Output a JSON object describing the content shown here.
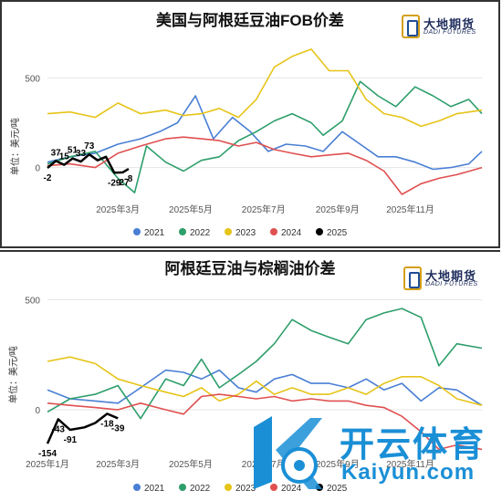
{
  "chart_data": [
    {
      "type": "line",
      "title": "美国与阿根廷豆油FOB价差",
      "ylabel": "单位：美元/吨",
      "ylim": [
        -160,
        680
      ],
      "yticks": [
        0,
        500
      ],
      "x_range": [
        "2025-01-01",
        "2025-12-31"
      ],
      "xticks": [
        "2025年3月",
        "2025年5月",
        "2025年7月",
        "2025年9月",
        "2025年11月"
      ],
      "legend": "bottom-center",
      "series": [
        {
          "name": "2021",
          "color": "#4a7fd4",
          "x": [
            "2025-01-01",
            "2025-01-20",
            "2025-02-10",
            "2025-03-01",
            "2025-03-20",
            "2025-04-05",
            "2025-04-20",
            "2025-05-05",
            "2025-05-20",
            "2025-06-05",
            "2025-06-20",
            "2025-07-05",
            "2025-07-20",
            "2025-08-05",
            "2025-08-20",
            "2025-09-05",
            "2025-09-20",
            "2025-10-05",
            "2025-10-20",
            "2025-11-05",
            "2025-11-20",
            "2025-12-05",
            "2025-12-20",
            "2025-12-31"
          ],
          "y": [
            30,
            60,
            80,
            130,
            160,
            200,
            250,
            400,
            160,
            280,
            200,
            90,
            130,
            120,
            90,
            200,
            130,
            60,
            60,
            30,
            -10,
            0,
            20,
            90
          ]
        },
        {
          "name": "2022",
          "color": "#2e9e6b",
          "x": [
            "2025-01-01",
            "2025-01-20",
            "2025-02-10",
            "2025-03-01",
            "2025-03-15",
            "2025-03-25",
            "2025-04-10",
            "2025-04-25",
            "2025-05-10",
            "2025-05-25",
            "2025-06-10",
            "2025-06-25",
            "2025-07-10",
            "2025-07-25",
            "2025-08-10",
            "2025-08-20",
            "2025-09-05",
            "2025-09-20",
            "2025-10-05",
            "2025-10-20",
            "2025-11-05",
            "2025-11-20",
            "2025-12-05",
            "2025-12-20",
            "2025-12-31"
          ],
          "y": [
            20,
            60,
            90,
            -60,
            -140,
            120,
            30,
            -20,
            40,
            60,
            150,
            200,
            260,
            300,
            250,
            180,
            260,
            480,
            400,
            340,
            450,
            400,
            340,
            380,
            300
          ]
        },
        {
          "name": "2023",
          "color": "#e6c419",
          "x": [
            "2025-01-01",
            "2025-01-20",
            "2025-02-10",
            "2025-03-01",
            "2025-03-20",
            "2025-04-10",
            "2025-04-25",
            "2025-05-10",
            "2025-05-25",
            "2025-06-10",
            "2025-06-25",
            "2025-07-10",
            "2025-07-25",
            "2025-08-10",
            "2025-08-25",
            "2025-09-10",
            "2025-09-25",
            "2025-10-10",
            "2025-10-25",
            "2025-11-10",
            "2025-11-25",
            "2025-12-10",
            "2025-12-31"
          ],
          "y": [
            300,
            310,
            280,
            360,
            300,
            320,
            290,
            300,
            330,
            280,
            380,
            560,
            620,
            660,
            540,
            540,
            380,
            300,
            280,
            230,
            260,
            300,
            320
          ]
        },
        {
          "name": "2024",
          "color": "#e05050",
          "x": [
            "2025-01-01",
            "2025-01-20",
            "2025-02-10",
            "2025-03-01",
            "2025-03-20",
            "2025-04-10",
            "2025-04-25",
            "2025-05-10",
            "2025-05-25",
            "2025-06-10",
            "2025-06-25",
            "2025-07-10",
            "2025-07-25",
            "2025-08-10",
            "2025-08-25",
            "2025-09-10",
            "2025-09-25",
            "2025-10-10",
            "2025-10-25",
            "2025-11-10",
            "2025-11-25",
            "2025-12-10",
            "2025-12-31"
          ],
          "y": [
            10,
            20,
            0,
            80,
            120,
            160,
            170,
            160,
            150,
            120,
            140,
            100,
            80,
            60,
            70,
            80,
            40,
            -20,
            -150,
            -90,
            -60,
            -40,
            0
          ]
        },
        {
          "name": "2025",
          "color": "#000000",
          "x": [
            "2025-01-01",
            "2025-01-08",
            "2025-01-15",
            "2025-01-22",
            "2025-01-29",
            "2025-02-05",
            "2025-02-12",
            "2025-02-19",
            "2025-02-26",
            "2025-03-05",
            "2025-03-10"
          ],
          "y": [
            -2,
            37,
            15,
            51,
            33,
            73,
            40,
            60,
            -29,
            -27,
            -8
          ]
        }
      ],
      "annotations": [
        {
          "text": "-2",
          "x": "2025-01-01",
          "y": -2
        },
        {
          "text": "37",
          "x": "2025-01-08",
          "y": 37
        },
        {
          "text": "15",
          "x": "2025-01-15",
          "y": 15
        },
        {
          "text": "51",
          "x": "2025-01-22",
          "y": 51
        },
        {
          "text": "33",
          "x": "2025-01-29",
          "y": 33
        },
        {
          "text": "73",
          "x": "2025-02-05",
          "y": 73
        },
        {
          "text": "-29",
          "x": "2025-02-26",
          "y": -29
        },
        {
          "text": "-27",
          "x": "2025-03-05",
          "y": -27
        },
        {
          "text": "-8",
          "x": "2025-03-10",
          "y": -8
        }
      ]
    },
    {
      "type": "line",
      "title": "阿根廷豆油与棕榈油价差",
      "ylabel": "单位：美元/吨",
      "ylim": [
        -170,
        560
      ],
      "yticks": [
        0,
        500
      ],
      "x_range": [
        "2025-01-01",
        "2025-12-31"
      ],
      "xticks": [
        "2025年1月",
        "2025年3月",
        "2025年5月",
        "2025年7月",
        "2025年9月",
        "2025年11月"
      ],
      "legend": "bottom-center",
      "series": [
        {
          "name": "2021",
          "color": "#4a7fd4",
          "x": [
            "2025-01-01",
            "2025-01-20",
            "2025-02-10",
            "2025-03-01",
            "2025-03-20",
            "2025-04-10",
            "2025-04-25",
            "2025-05-10",
            "2025-05-25",
            "2025-06-10",
            "2025-06-25",
            "2025-07-10",
            "2025-07-25",
            "2025-08-10",
            "2025-08-25",
            "2025-09-10",
            "2025-09-25",
            "2025-10-10",
            "2025-10-25",
            "2025-11-10",
            "2025-11-25",
            "2025-12-10",
            "2025-12-31"
          ],
          "y": [
            90,
            50,
            40,
            30,
            100,
            180,
            170,
            140,
            180,
            100,
            80,
            140,
            160,
            120,
            120,
            100,
            140,
            90,
            120,
            40,
            100,
            90,
            20
          ]
        },
        {
          "name": "2022",
          "color": "#2e9e6b",
          "x": [
            "2025-01-01",
            "2025-01-20",
            "2025-02-10",
            "2025-03-01",
            "2025-03-20",
            "2025-04-10",
            "2025-04-25",
            "2025-05-10",
            "2025-05-25",
            "2025-06-10",
            "2025-06-25",
            "2025-07-10",
            "2025-07-25",
            "2025-08-10",
            "2025-08-25",
            "2025-09-10",
            "2025-09-25",
            "2025-10-10",
            "2025-10-25",
            "2025-11-10",
            "2025-11-25",
            "2025-12-10",
            "2025-12-31"
          ],
          "y": [
            -10,
            50,
            70,
            110,
            -40,
            140,
            110,
            230,
            100,
            160,
            220,
            300,
            410,
            360,
            330,
            300,
            410,
            440,
            460,
            420,
            200,
            300,
            280
          ]
        },
        {
          "name": "2023",
          "color": "#e6c419",
          "x": [
            "2025-01-01",
            "2025-01-20",
            "2025-02-10",
            "2025-03-01",
            "2025-03-20",
            "2025-04-10",
            "2025-04-25",
            "2025-05-10",
            "2025-05-25",
            "2025-06-10",
            "2025-06-25",
            "2025-07-10",
            "2025-07-25",
            "2025-08-10",
            "2025-08-25",
            "2025-09-10",
            "2025-09-25",
            "2025-10-10",
            "2025-10-25",
            "2025-11-10",
            "2025-11-25",
            "2025-12-10",
            "2025-12-31"
          ],
          "y": [
            220,
            240,
            210,
            140,
            110,
            80,
            60,
            100,
            40,
            70,
            130,
            70,
            100,
            70,
            70,
            100,
            70,
            120,
            150,
            150,
            110,
            50,
            20
          ]
        },
        {
          "name": "2024",
          "color": "#e05050",
          "x": [
            "2025-01-01",
            "2025-01-20",
            "2025-02-10",
            "2025-03-01",
            "2025-03-20",
            "2025-04-10",
            "2025-04-25",
            "2025-05-10",
            "2025-05-25",
            "2025-06-10",
            "2025-06-25",
            "2025-07-10",
            "2025-07-25",
            "2025-08-10",
            "2025-08-25",
            "2025-09-10",
            "2025-09-25",
            "2025-10-10",
            "2025-10-25",
            "2025-11-10",
            "2025-11-25",
            "2025-12-10",
            "2025-12-31"
          ],
          "y": [
            30,
            20,
            10,
            0,
            30,
            0,
            -20,
            60,
            70,
            60,
            50,
            60,
            40,
            50,
            40,
            40,
            20,
            10,
            -30,
            -100,
            -180,
            -160,
            -180
          ]
        },
        {
          "name": "2025",
          "color": "#000000",
          "x": [
            "2025-01-01",
            "2025-01-10",
            "2025-01-20",
            "2025-02-01",
            "2025-02-10",
            "2025-02-20",
            "2025-03-01"
          ],
          "y": [
            -154,
            -43,
            -91,
            -80,
            -60,
            -18,
            -39
          ]
        }
      ],
      "annotations": [
        {
          "text": "-154",
          "x": "2025-01-01",
          "y": -154
        },
        {
          "text": "-43",
          "x": "2025-01-10",
          "y": -43
        },
        {
          "text": "-91",
          "x": "2025-01-20",
          "y": -91
        },
        {
          "text": "-18",
          "x": "2025-02-20",
          "y": -18
        },
        {
          "text": "-39",
          "x": "2025-03-01",
          "y": -39
        }
      ]
    }
  ],
  "logo": {
    "cn": "大地期货",
    "en": "DADI FUTURES"
  },
  "watermark": {
    "cn": "开云体育",
    "en": "Kaiyun.com"
  }
}
